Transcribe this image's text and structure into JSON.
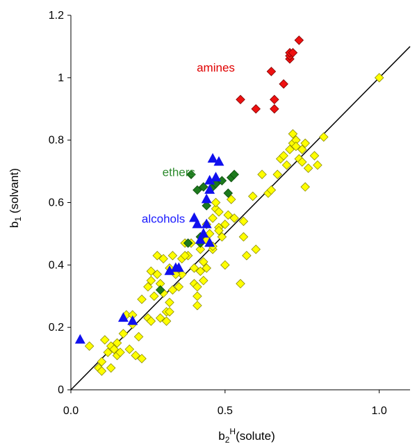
{
  "chart_data": {
    "type": "scatter",
    "xlim": [
      0,
      1.1
    ],
    "ylim": [
      0,
      1.2
    ],
    "x_ticks": [
      "0.0",
      "0.5",
      "1.0"
    ],
    "x_tick_values": [
      0,
      0.5,
      1.0
    ],
    "y_ticks": [
      "0",
      "0.2",
      "0.4",
      "0.6",
      "0.8",
      "1",
      "1.2"
    ],
    "y_tick_values": [
      0,
      0.2,
      0.4,
      0.6,
      0.8,
      1.0,
      1.2
    ],
    "xlabel": {
      "main": "b",
      "sub": "2",
      "sup": "H",
      "rest": "(solute)"
    },
    "ylabel": {
      "main": "b",
      "sub": "1",
      "rest": " (solvant)"
    },
    "grid": false,
    "reference_line": {
      "label": "",
      "x": [
        0,
        1.1
      ],
      "y": [
        0,
        1.1
      ]
    },
    "annotations": [
      {
        "text": "amines",
        "color": "#e00000",
        "x": 0.47,
        "y": 1.02
      },
      {
        "text": "ethers",
        "color": "#2e8b2e",
        "x": 0.35,
        "y": 0.685
      },
      {
        "text": "alcohols",
        "color": "#1a1aff",
        "x": 0.3,
        "y": 0.535
      }
    ],
    "series": [
      {
        "color": "#ffff00",
        "stroke": "#8a8a00",
        "marker": "diamond",
        "points": [
          [
            0.06,
            0.14
          ],
          [
            0.09,
            0.07
          ],
          [
            0.1,
            0.06
          ],
          [
            0.1,
            0.09
          ],
          [
            0.11,
            0.16
          ],
          [
            0.12,
            0.12
          ],
          [
            0.13,
            0.14
          ],
          [
            0.13,
            0.07
          ],
          [
            0.14,
            0.13
          ],
          [
            0.15,
            0.11
          ],
          [
            0.15,
            0.15
          ],
          [
            0.16,
            0.12
          ],
          [
            0.17,
            0.18
          ],
          [
            0.18,
            0.24
          ],
          [
            0.19,
            0.13
          ],
          [
            0.2,
            0.21
          ],
          [
            0.2,
            0.24
          ],
          [
            0.21,
            0.11
          ],
          [
            0.22,
            0.17
          ],
          [
            0.23,
            0.1
          ],
          [
            0.23,
            0.29
          ],
          [
            0.25,
            0.23
          ],
          [
            0.25,
            0.33
          ],
          [
            0.26,
            0.38
          ],
          [
            0.26,
            0.35
          ],
          [
            0.27,
            0.3
          ],
          [
            0.28,
            0.43
          ],
          [
            0.28,
            0.37
          ],
          [
            0.29,
            0.23
          ],
          [
            0.29,
            0.34
          ],
          [
            0.3,
            0.31
          ],
          [
            0.3,
            0.42
          ],
          [
            0.31,
            0.25
          ],
          [
            0.31,
            0.22
          ],
          [
            0.32,
            0.28
          ],
          [
            0.32,
            0.39
          ],
          [
            0.33,
            0.43
          ],
          [
            0.33,
            0.32
          ],
          [
            0.34,
            0.38
          ],
          [
            0.35,
            0.33
          ],
          [
            0.36,
            0.37
          ],
          [
            0.36,
            0.42
          ],
          [
            0.37,
            0.47
          ],
          [
            0.38,
            0.43
          ],
          [
            0.39,
            0.47
          ],
          [
            0.4,
            0.34
          ],
          [
            0.4,
            0.39
          ],
          [
            0.41,
            0.3
          ],
          [
            0.41,
            0.33
          ],
          [
            0.42,
            0.38
          ],
          [
            0.42,
            0.45
          ],
          [
            0.43,
            0.41
          ],
          [
            0.43,
            0.35
          ],
          [
            0.44,
            0.48
          ],
          [
            0.44,
            0.53
          ],
          [
            0.45,
            0.5
          ],
          [
            0.46,
            0.45
          ],
          [
            0.46,
            0.55
          ],
          [
            0.47,
            0.58
          ],
          [
            0.47,
            0.6
          ],
          [
            0.48,
            0.52
          ],
          [
            0.48,
            0.57
          ],
          [
            0.49,
            0.49
          ],
          [
            0.5,
            0.4
          ],
          [
            0.5,
            0.53
          ],
          [
            0.51,
            0.56
          ],
          [
            0.52,
            0.61
          ],
          [
            0.53,
            0.55
          ],
          [
            0.55,
            0.34
          ],
          [
            0.56,
            0.54
          ],
          [
            0.56,
            0.49
          ],
          [
            0.57,
            0.43
          ],
          [
            0.59,
            0.62
          ],
          [
            0.6,
            0.45
          ],
          [
            0.62,
            0.69
          ],
          [
            0.64,
            0.63
          ],
          [
            0.65,
            0.64
          ],
          [
            0.67,
            0.69
          ],
          [
            0.68,
            0.74
          ],
          [
            0.69,
            0.75
          ],
          [
            0.7,
            0.72
          ],
          [
            0.71,
            0.77
          ],
          [
            0.72,
            0.82
          ],
          [
            0.72,
            0.79
          ],
          [
            0.73,
            0.8
          ],
          [
            0.74,
            0.74
          ],
          [
            0.75,
            0.77
          ],
          [
            0.75,
            0.73
          ],
          [
            0.76,
            0.65
          ],
          [
            0.76,
            0.79
          ],
          [
            0.77,
            0.71
          ],
          [
            0.79,
            0.75
          ],
          [
            0.8,
            0.72
          ],
          [
            0.82,
            0.81
          ],
          [
            0.73,
            0.78
          ],
          [
            1.0,
            1.0
          ],
          [
            0.41,
            0.27
          ],
          [
            0.37,
            0.43
          ],
          [
            0.26,
            0.22
          ],
          [
            0.46,
            0.46
          ],
          [
            0.48,
            0.51
          ],
          [
            0.44,
            0.39
          ],
          [
            0.34,
            0.37
          ],
          [
            0.32,
            0.25
          ]
        ]
      },
      {
        "color": "#1d7a1d",
        "stroke": "#0d4a0d",
        "marker": "diamond",
        "points": [
          [
            0.29,
            0.32
          ],
          [
            0.38,
            0.47
          ],
          [
            0.39,
            0.69
          ],
          [
            0.41,
            0.64
          ],
          [
            0.42,
            0.47
          ],
          [
            0.43,
            0.65
          ],
          [
            0.44,
            0.59
          ],
          [
            0.46,
            0.65
          ],
          [
            0.47,
            0.66
          ],
          [
            0.49,
            0.67
          ],
          [
            0.51,
            0.63
          ],
          [
            0.52,
            0.68
          ],
          [
            0.53,
            0.69
          ],
          [
            0.42,
            0.49
          ]
        ]
      },
      {
        "color": "#1010ee",
        "stroke": "#1010ee",
        "marker": "triangle",
        "points": [
          [
            0.03,
            0.16
          ],
          [
            0.17,
            0.23
          ],
          [
            0.2,
            0.22
          ],
          [
            0.32,
            0.38
          ],
          [
            0.34,
            0.39
          ],
          [
            0.35,
            0.39
          ],
          [
            0.4,
            0.55
          ],
          [
            0.41,
            0.53
          ],
          [
            0.42,
            0.48
          ],
          [
            0.43,
            0.5
          ],
          [
            0.44,
            0.53
          ],
          [
            0.45,
            0.47
          ],
          [
            0.44,
            0.61
          ],
          [
            0.45,
            0.64
          ],
          [
            0.45,
            0.67
          ],
          [
            0.46,
            0.74
          ],
          [
            0.47,
            0.68
          ],
          [
            0.48,
            0.73
          ]
        ]
      },
      {
        "color": "#ee1111",
        "stroke": "#7a0000",
        "marker": "diamond",
        "points": [
          [
            0.55,
            0.93
          ],
          [
            0.6,
            0.9
          ],
          [
            0.65,
            1.02
          ],
          [
            0.66,
            0.93
          ],
          [
            0.66,
            0.9
          ],
          [
            0.69,
            0.98
          ],
          [
            0.71,
            1.06
          ],
          [
            0.71,
            1.07
          ],
          [
            0.71,
            1.08
          ],
          [
            0.72,
            1.08
          ],
          [
            0.74,
            1.12
          ]
        ]
      }
    ]
  }
}
